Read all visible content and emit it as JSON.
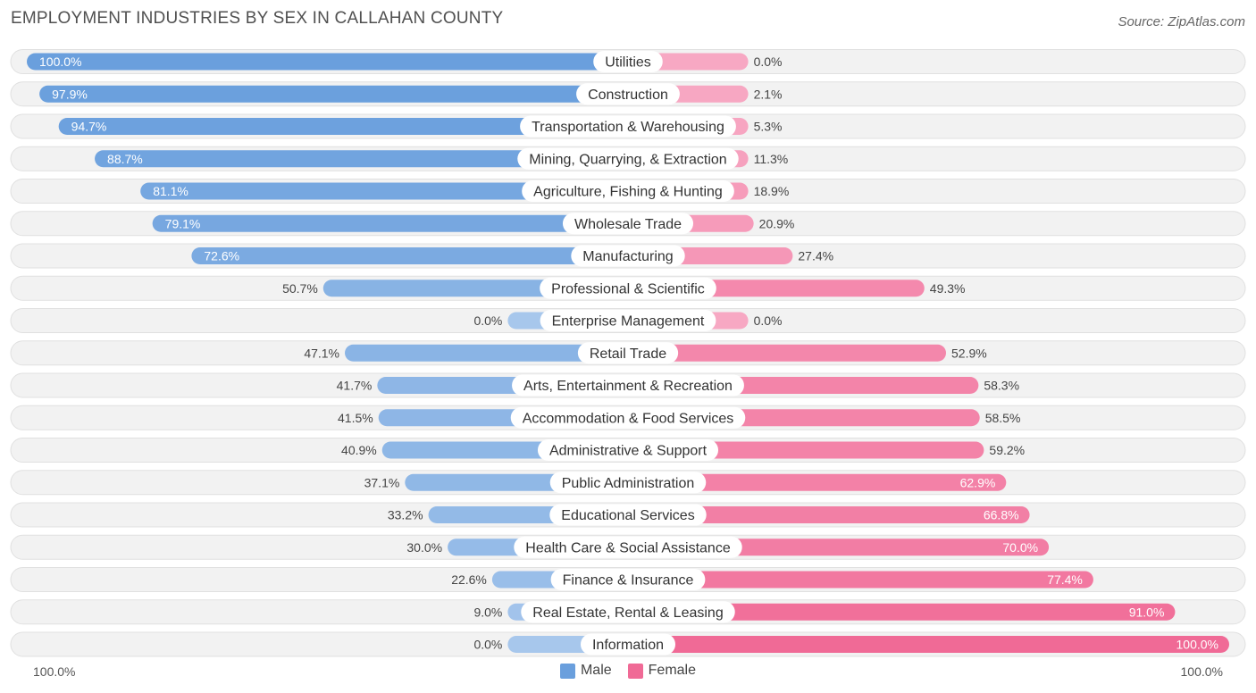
{
  "header": {
    "title": "EMPLOYMENT INDUSTRIES BY SEX IN CALLAHAN COUNTY",
    "source": "Source: ZipAtlas.com"
  },
  "colors": {
    "male_strong": "#6a9fdd",
    "male_light": "#a7c7ec",
    "female_strong": "#f06a96",
    "female_light": "#f7a8c3",
    "track": "#efefef"
  },
  "axis": {
    "left_label": "100.0%",
    "right_label": "100.0%"
  },
  "legend": {
    "male": "Male",
    "female": "Female"
  },
  "chart_data": {
    "type": "bar",
    "orientation": "horizontal-diverging",
    "title": "EMPLOYMENT INDUSTRIES BY SEX IN CALLAHAN COUNTY",
    "xlim": [
      -100,
      100
    ],
    "categories": [
      "Utilities",
      "Construction",
      "Transportation & Warehousing",
      "Mining, Quarrying, & Extraction",
      "Agriculture, Fishing & Hunting",
      "Wholesale Trade",
      "Manufacturing",
      "Professional & Scientific",
      "Enterprise Management",
      "Retail Trade",
      "Arts, Entertainment & Recreation",
      "Accommodation & Food Services",
      "Administrative & Support",
      "Public Administration",
      "Educational Services",
      "Health Care & Social Assistance",
      "Finance & Insurance",
      "Real Estate, Rental & Leasing",
      "Information"
    ],
    "series": [
      {
        "name": "Male",
        "values": [
          100.0,
          97.9,
          94.7,
          88.7,
          81.1,
          79.1,
          72.6,
          50.7,
          0.0,
          47.1,
          41.7,
          41.5,
          40.9,
          37.1,
          33.2,
          30.0,
          22.6,
          9.0,
          0.0
        ],
        "labels": [
          "100.0%",
          "97.9%",
          "94.7%",
          "88.7%",
          "81.1%",
          "79.1%",
          "72.6%",
          "50.7%",
          "0.0%",
          "47.1%",
          "41.7%",
          "41.5%",
          "40.9%",
          "37.1%",
          "33.2%",
          "30.0%",
          "22.6%",
          "9.0%",
          "0.0%"
        ]
      },
      {
        "name": "Female",
        "values": [
          0.0,
          2.1,
          5.3,
          11.3,
          18.9,
          20.9,
          27.4,
          49.3,
          0.0,
          52.9,
          58.3,
          58.5,
          59.2,
          62.9,
          66.8,
          70.0,
          77.4,
          91.0,
          100.0
        ],
        "labels": [
          "0.0%",
          "2.1%",
          "5.3%",
          "11.3%",
          "18.9%",
          "20.9%",
          "27.4%",
          "49.3%",
          "0.0%",
          "52.9%",
          "58.3%",
          "58.5%",
          "59.2%",
          "62.9%",
          "66.8%",
          "70.0%",
          "77.4%",
          "91.0%",
          "100.0%"
        ]
      }
    ]
  }
}
